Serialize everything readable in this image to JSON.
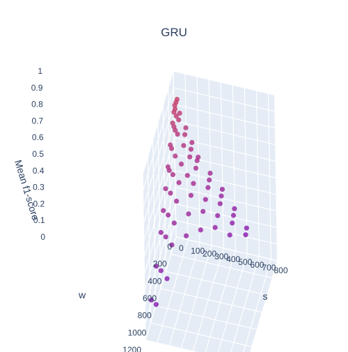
{
  "chart_data": {
    "type": "scatter3d",
    "title": "GRU",
    "axes": {
      "x": {
        "label": "w",
        "range": [
          0,
          1200
        ],
        "ticks": [
          "0",
          "200",
          "400",
          "600",
          "800",
          "1000",
          "1200"
        ]
      },
      "y": {
        "label": "s",
        "range": [
          0,
          850
        ],
        "ticks": [
          "0",
          "100",
          "200",
          "300",
          "400",
          "500",
          "600",
          "700",
          "800"
        ]
      },
      "z": {
        "label": "Mean f1-score",
        "range": [
          0,
          1
        ],
        "ticks": [
          "0",
          "0.1",
          "0.2",
          "0.3",
          "0.4",
          "0.5",
          "0.6",
          "0.7",
          "0.8",
          "0.9",
          "1"
        ]
      }
    },
    "grid": true,
    "colors": {
      "high": "#c8476e",
      "mid": "#b03f8f",
      "low": "#8a22b8",
      "pane": "#e5ecf6",
      "grid": "#ffffff",
      "text": "#2a3f5f"
    },
    "w_levels": [
      10,
      50,
      100,
      200,
      300,
      400,
      500,
      600,
      800,
      1000
    ],
    "s_levels": [
      10,
      20,
      30,
      50,
      100,
      150,
      200,
      300,
      400,
      500,
      600
    ],
    "points": [
      {
        "w": 10,
        "s": 10,
        "f1": 0.8
      },
      {
        "w": 10,
        "s": 20,
        "f1": 0.82
      },
      {
        "w": 10,
        "s": 30,
        "f1": 0.84
      },
      {
        "w": 10,
        "s": 50,
        "f1": 0.76
      },
      {
        "w": 10,
        "s": 100,
        "f1": 0.68
      },
      {
        "w": 10,
        "s": 150,
        "f1": 0.6
      },
      {
        "w": 10,
        "s": 200,
        "f1": 0.52
      },
      {
        "w": 10,
        "s": 300,
        "f1": 0.44
      },
      {
        "w": 10,
        "s": 400,
        "f1": 0.36
      },
      {
        "w": 10,
        "s": 500,
        "f1": 0.26
      },
      {
        "w": 10,
        "s": 600,
        "f1": 0.16
      },
      {
        "w": 50,
        "s": 10,
        "f1": 0.78
      },
      {
        "w": 50,
        "s": 20,
        "f1": 0.8
      },
      {
        "w": 50,
        "s": 30,
        "f1": 0.76
      },
      {
        "w": 50,
        "s": 50,
        "f1": 0.74
      },
      {
        "w": 50,
        "s": 100,
        "f1": 0.66
      },
      {
        "w": 50,
        "s": 150,
        "f1": 0.58
      },
      {
        "w": 50,
        "s": 200,
        "f1": 0.52
      },
      {
        "w": 50,
        "s": 300,
        "f1": 0.42
      },
      {
        "w": 50,
        "s": 400,
        "f1": 0.34
      },
      {
        "w": 50,
        "s": 500,
        "f1": 0.24
      },
      {
        "w": 50,
        "s": 600,
        "f1": 0.14
      },
      {
        "w": 100,
        "s": 10,
        "f1": 0.74
      },
      {
        "w": 100,
        "s": 20,
        "f1": 0.72
      },
      {
        "w": 100,
        "s": 30,
        "f1": 0.7
      },
      {
        "w": 100,
        "s": 50,
        "f1": 0.68
      },
      {
        "w": 100,
        "s": 100,
        "f1": 0.62
      },
      {
        "w": 100,
        "s": 150,
        "f1": 0.56
      },
      {
        "w": 100,
        "s": 200,
        "f1": 0.5
      },
      {
        "w": 100,
        "s": 300,
        "f1": 0.4
      },
      {
        "w": 100,
        "s": 400,
        "f1": 0.32
      },
      {
        "w": 100,
        "s": 500,
        "f1": 0.22
      },
      {
        "w": 200,
        "s": 10,
        "f1": 0.66
      },
      {
        "w": 200,
        "s": 20,
        "f1": 0.64
      },
      {
        "w": 200,
        "s": 50,
        "f1": 0.6
      },
      {
        "w": 200,
        "s": 100,
        "f1": 0.56
      },
      {
        "w": 200,
        "s": 150,
        "f1": 0.5
      },
      {
        "w": 200,
        "s": 200,
        "f1": 0.46
      },
      {
        "w": 200,
        "s": 300,
        "f1": 0.38
      },
      {
        "w": 200,
        "s": 400,
        "f1": 0.3
      },
      {
        "w": 200,
        "s": 500,
        "f1": 0.2
      },
      {
        "w": 300,
        "s": 10,
        "f1": 0.58
      },
      {
        "w": 300,
        "s": 20,
        "f1": 0.56
      },
      {
        "w": 300,
        "s": 50,
        "f1": 0.54
      },
      {
        "w": 300,
        "s": 100,
        "f1": 0.5
      },
      {
        "w": 300,
        "s": 200,
        "f1": 0.44
      },
      {
        "w": 300,
        "s": 300,
        "f1": 0.36
      },
      {
        "w": 300,
        "s": 400,
        "f1": 0.28
      },
      {
        "w": 400,
        "s": 10,
        "f1": 0.5
      },
      {
        "w": 400,
        "s": 50,
        "f1": 0.48
      },
      {
        "w": 400,
        "s": 100,
        "f1": 0.44
      },
      {
        "w": 400,
        "s": 200,
        "f1": 0.38
      },
      {
        "w": 400,
        "s": 300,
        "f1": 0.3
      },
      {
        "w": 500,
        "s": 10,
        "f1": 0.42
      },
      {
        "w": 500,
        "s": 50,
        "f1": 0.4
      },
      {
        "w": 500,
        "s": 100,
        "f1": 0.36
      },
      {
        "w": 500,
        "s": 200,
        "f1": 0.3
      },
      {
        "w": 600,
        "s": 10,
        "f1": 0.34
      },
      {
        "w": 600,
        "s": 50,
        "f1": 0.32
      },
      {
        "w": 600,
        "s": 100,
        "f1": 0.28
      },
      {
        "w": 800,
        "s": 10,
        "f1": 0.24
      },
      {
        "w": 800,
        "s": 50,
        "f1": 0.22
      },
      {
        "w": 800,
        "s": 100,
        "f1": 0.18
      },
      {
        "w": 1000,
        "s": 10,
        "f1": 0.14
      },
      {
        "w": 1000,
        "s": 50,
        "f1": 0.12
      }
    ]
  }
}
